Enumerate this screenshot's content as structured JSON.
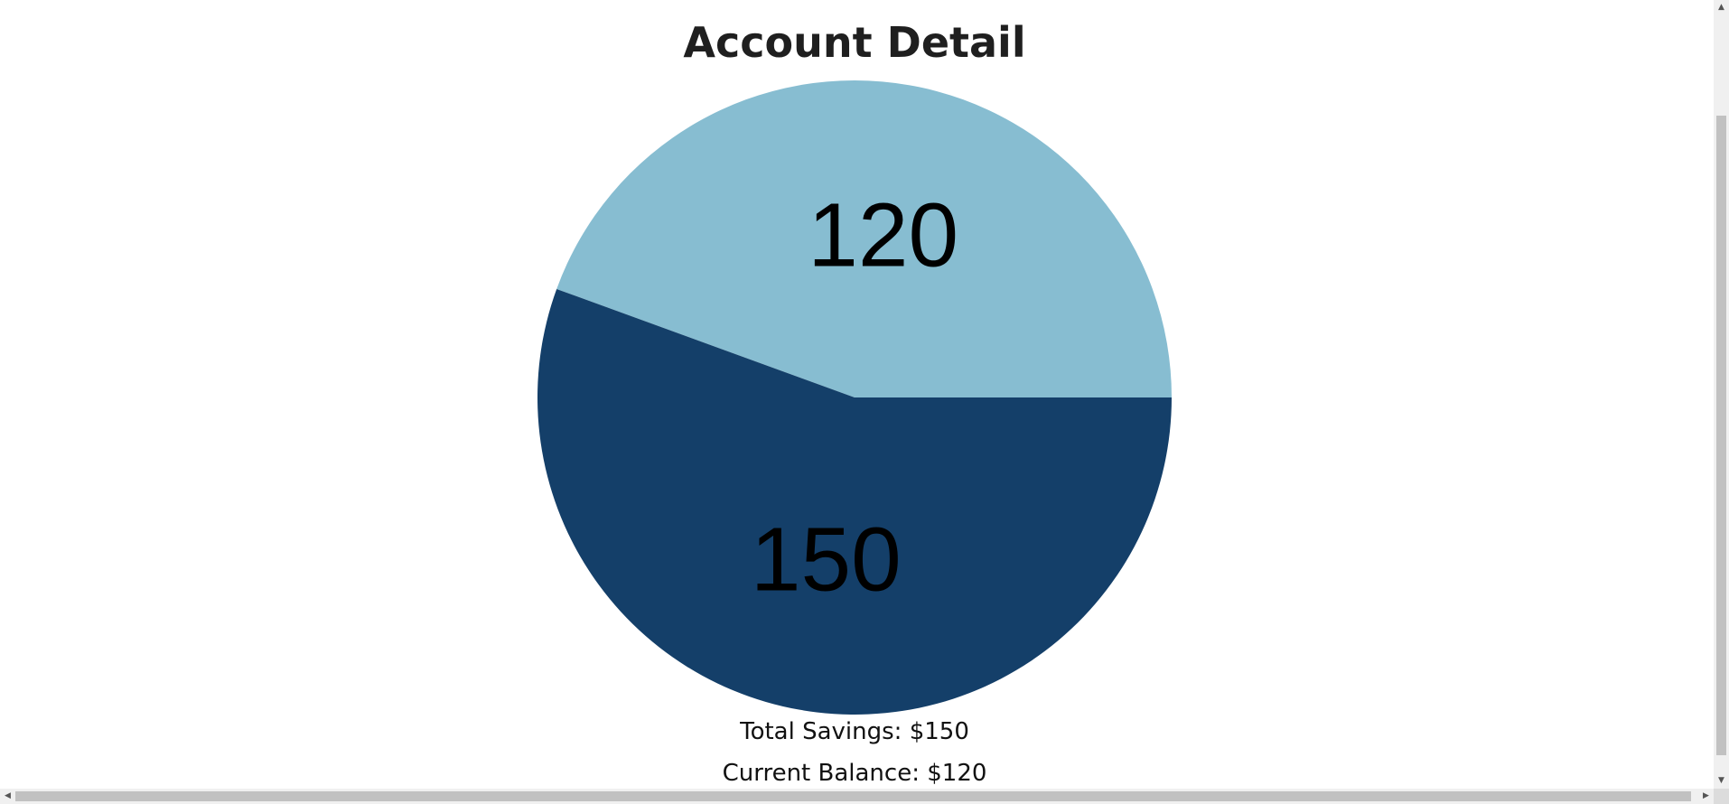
{
  "page": {
    "title": "Account Detail"
  },
  "chart_data": {
    "type": "pie",
    "slices": [
      {
        "label": "120",
        "value": 120,
        "color": "#87bdd1"
      },
      {
        "label": "150",
        "value": 150,
        "color": "#143f69"
      }
    ]
  },
  "summary": {
    "savings_text": "Total Savings: $150",
    "balance_text": "Current Balance: $120"
  },
  "scrollbars": {
    "up_icon": "▲",
    "down_icon": "▼",
    "left_icon": "◀",
    "right_icon": "▶"
  }
}
